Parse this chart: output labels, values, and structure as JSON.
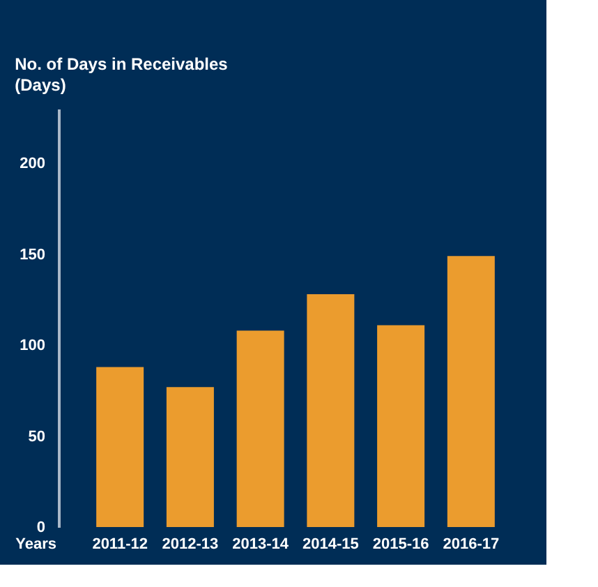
{
  "chart_data": {
    "type": "bar",
    "title": "No. of Days in Receivables",
    "subtitle": "(Days)",
    "xlabel": "Years",
    "categories": [
      "2011-12",
      "2012-13",
      "2013-14",
      "2014-15",
      "2015-16",
      "2016-17"
    ],
    "values": [
      88,
      77,
      108,
      128,
      111,
      149
    ],
    "color": "#eb9c2e",
    "ylim": [
      0,
      230
    ],
    "yticks": [
      0,
      50,
      100,
      150,
      200
    ],
    "grid": false
  }
}
